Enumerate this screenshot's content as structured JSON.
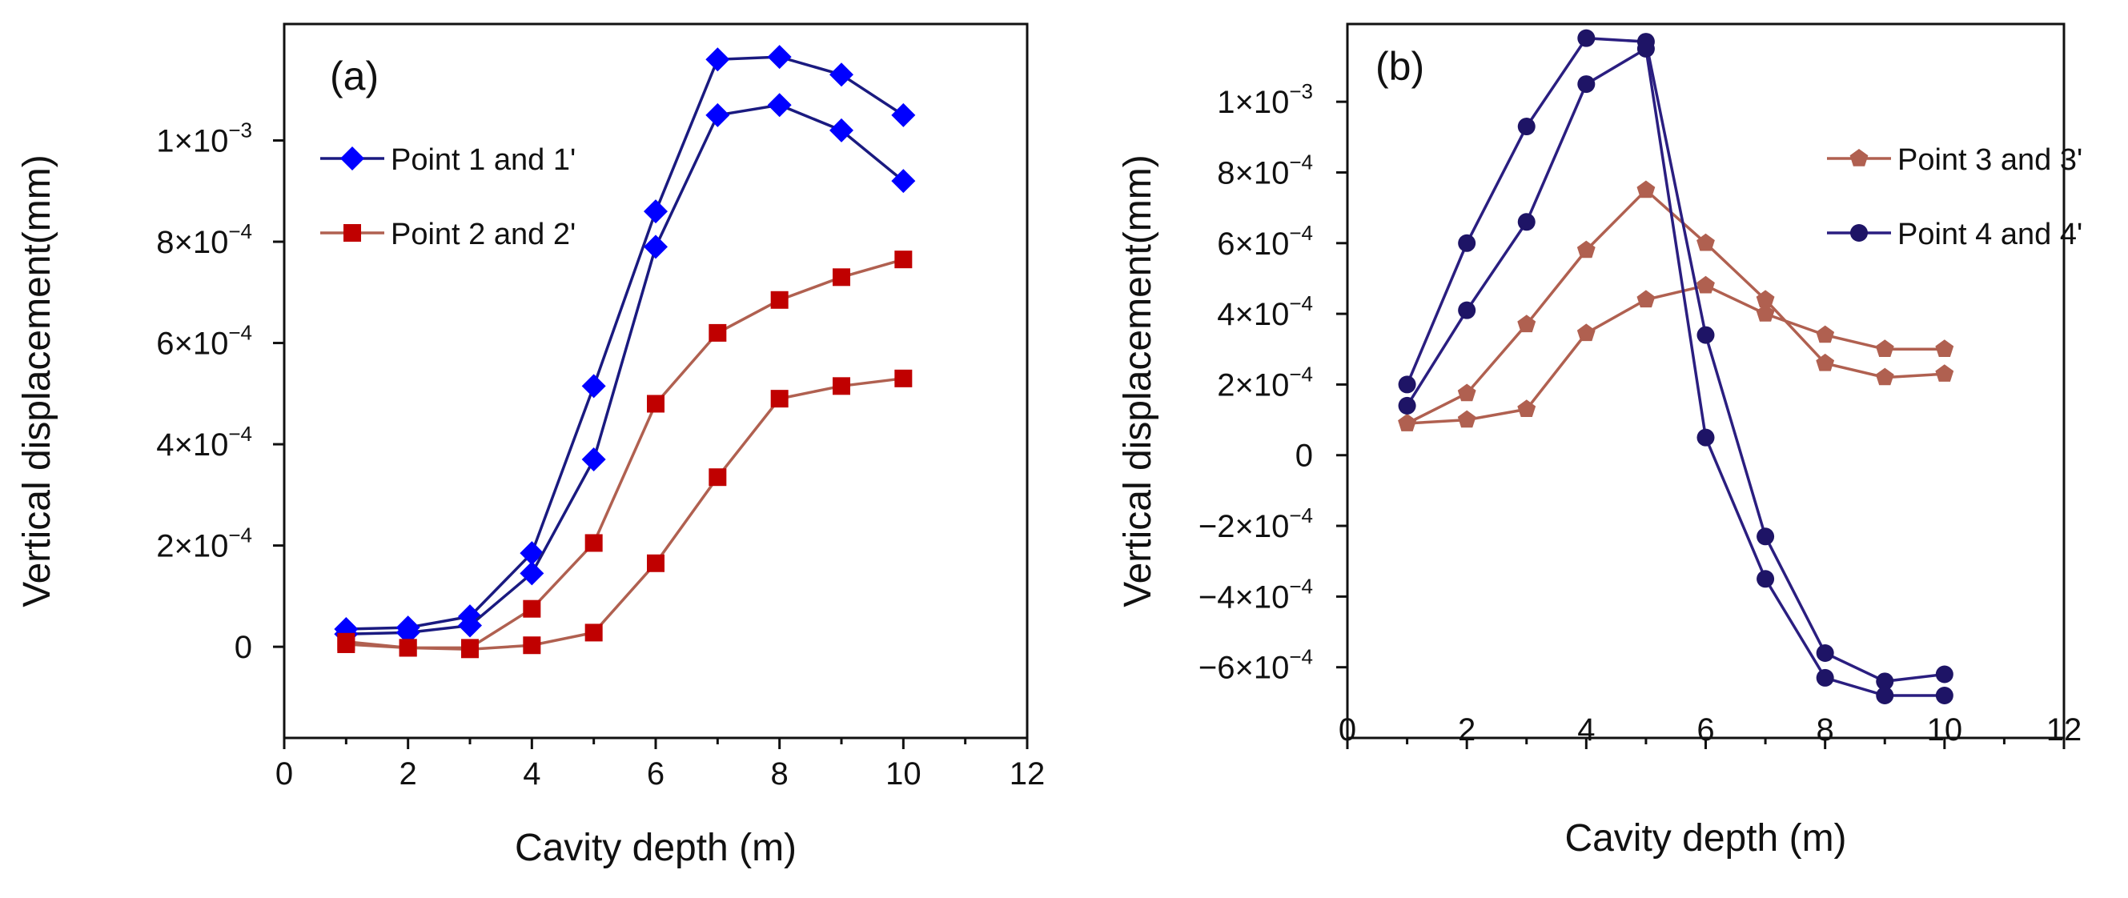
{
  "chart_data": [
    {
      "type": "line",
      "panel_label": "(a)",
      "xlabel": "Cavity depth (m)",
      "ylabel": "Vertical displacement(mm)",
      "xlim": [
        0,
        12
      ],
      "ylim": [
        -0.00018,
        0.00123
      ],
      "x_ticks": [
        0,
        2,
        4,
        6,
        8,
        10,
        12
      ],
      "x_tick_labels": [
        "0",
        "2",
        "4",
        "6",
        "8",
        "10",
        "12"
      ],
      "y_ticks": [
        0,
        0.0002,
        0.0004,
        0.0006,
        0.0008,
        0.001
      ],
      "y_tick_labels": [
        {
          "mantissa": "0",
          "exponent": ""
        },
        {
          "mantissa": "2×10",
          "exponent": "−4"
        },
        {
          "mantissa": "4×10",
          "exponent": "−4"
        },
        {
          "mantissa": "6×10",
          "exponent": "−4"
        },
        {
          "mantissa": "8×10",
          "exponent": "−4"
        },
        {
          "mantissa": "1×10",
          "exponent": "−3"
        }
      ],
      "grid": false,
      "legend_position": "left",
      "legend": [
        {
          "label": "Point 1 and 1'",
          "color": "#0000ff",
          "line_color": "#1a1a80",
          "marker": "diamond"
        },
        {
          "label": "Point 2 and 2'",
          "color": "#c00000",
          "line_color": "#b06050",
          "marker": "square"
        }
      ],
      "series": [
        {
          "legend_index": 0,
          "marker": "diamond",
          "marker_color": "#0000ff",
          "line_color": "#1a1a80",
          "x": [
            1,
            2,
            3,
            4,
            5,
            6,
            7,
            8,
            9,
            10
          ],
          "y": [
            3.5e-05,
            3.8e-05,
            6e-05,
            0.000185,
            0.000515,
            0.00086,
            0.00116,
            0.001165,
            0.00113,
            0.00105
          ]
        },
        {
          "legend_index": 0,
          "marker": "diamond",
          "marker_color": "#0000ff",
          "line_color": "#1a1a80",
          "x": [
            1,
            2,
            3,
            4,
            5,
            6,
            7,
            8,
            9,
            10
          ],
          "y": [
            2.5e-05,
            2.8e-05,
            4.2e-05,
            0.000145,
            0.00037,
            0.00079,
            0.00105,
            0.00107,
            0.00102,
            0.00092
          ]
        },
        {
          "legend_index": 1,
          "marker": "square",
          "marker_color": "#c00000",
          "line_color": "#b06050",
          "x": [
            1,
            2,
            3,
            4,
            5,
            6,
            7,
            8,
            9,
            10
          ],
          "y": [
            1e-05,
            -2e-06,
            -2e-06,
            7.5e-05,
            0.000205,
            0.00048,
            0.00062,
            0.000685,
            0.00073,
            0.000765
          ]
        },
        {
          "legend_index": 1,
          "marker": "square",
          "marker_color": "#c00000",
          "line_color": "#b06050",
          "x": [
            1,
            2,
            3,
            4,
            5,
            6,
            7,
            8,
            9,
            10
          ],
          "y": [
            5e-06,
            -2e-06,
            -5e-06,
            3e-06,
            2.8e-05,
            0.000165,
            0.000335,
            0.00049,
            0.000515,
            0.00053
          ]
        }
      ]
    },
    {
      "type": "line",
      "panel_label": "(b)",
      "xlabel": "Cavity depth (m)",
      "ylabel": "Vertical displacement(mm)",
      "xlim": [
        0,
        12
      ],
      "ylim": [
        -0.0008,
        0.00122
      ],
      "x_ticks": [
        0,
        2,
        4,
        6,
        8,
        10,
        12
      ],
      "x_tick_labels": [
        "0",
        "2",
        "4",
        "6",
        "8",
        "10",
        "12"
      ],
      "y_ticks": [
        -0.0006,
        -0.0004,
        -0.0002,
        0,
        0.0002,
        0.0004,
        0.0006,
        0.0008,
        0.001
      ],
      "y_tick_labels": [
        {
          "mantissa": "−6×10",
          "exponent": "−4"
        },
        {
          "mantissa": "−4×10",
          "exponent": "−4"
        },
        {
          "mantissa": "−2×10",
          "exponent": "−4"
        },
        {
          "mantissa": "0",
          "exponent": ""
        },
        {
          "mantissa": "2×10",
          "exponent": "−4"
        },
        {
          "mantissa": "4×10",
          "exponent": "−4"
        },
        {
          "mantissa": "6×10",
          "exponent": "−4"
        },
        {
          "mantissa": "8×10",
          "exponent": "−4"
        },
        {
          "mantissa": "1×10",
          "exponent": "−3"
        }
      ],
      "grid": false,
      "legend_position": "right",
      "legend": [
        {
          "label": "Point 3 and 3'",
          "color": "#b06050",
          "line_color": "#b06050",
          "marker": "pentagon"
        },
        {
          "label": "Point 4 and 4'",
          "color": "#1e1466",
          "line_color": "#2a1e80",
          "marker": "circle"
        }
      ],
      "series": [
        {
          "legend_index": 0,
          "marker": "pentagon",
          "marker_color": "#b06050",
          "line_color": "#b06050",
          "x": [
            1,
            2,
            3,
            4,
            5,
            6,
            7,
            8,
            9,
            10
          ],
          "y": [
            9e-05,
            0.000175,
            0.00037,
            0.00058,
            0.00075,
            0.0006,
            0.00044,
            0.00026,
            0.00022,
            0.00023
          ]
        },
        {
          "legend_index": 0,
          "marker": "pentagon",
          "marker_color": "#b06050",
          "line_color": "#b06050",
          "x": [
            1,
            2,
            3,
            4,
            5,
            6,
            7,
            8,
            9,
            10
          ],
          "y": [
            9e-05,
            0.0001,
            0.00013,
            0.000345,
            0.00044,
            0.00048,
            0.0004,
            0.00034,
            0.0003,
            0.0003
          ]
        },
        {
          "legend_index": 1,
          "marker": "circle",
          "marker_color": "#1e1466",
          "line_color": "#2a1e80",
          "x": [
            1,
            2,
            3,
            4,
            5,
            6,
            7,
            8,
            9,
            10
          ],
          "y": [
            0.0002,
            0.0006,
            0.00093,
            0.00118,
            0.00117,
            0.00034,
            -0.00023,
            -0.00056,
            -0.00064,
            -0.00062
          ]
        },
        {
          "legend_index": 1,
          "marker": "circle",
          "marker_color": "#1e1466",
          "line_color": "#2a1e80",
          "x": [
            1,
            2,
            3,
            4,
            5,
            6,
            7,
            8,
            9,
            10
          ],
          "y": [
            0.00014,
            0.00041,
            0.00066,
            0.00105,
            0.00115,
            5e-05,
            -0.00035,
            -0.00063,
            -0.00068,
            -0.00068
          ]
        }
      ]
    }
  ]
}
